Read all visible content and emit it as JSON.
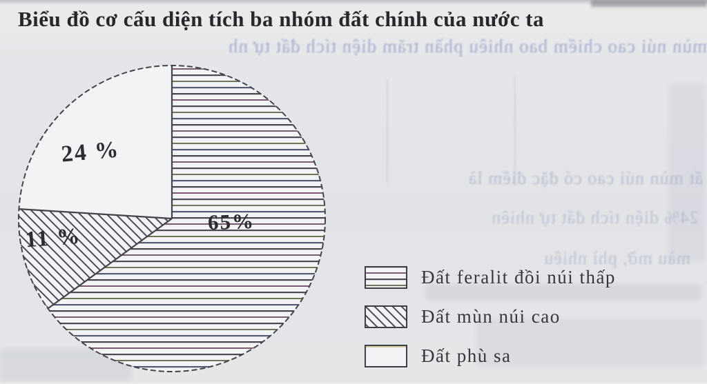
{
  "title": "Biểu đồ cơ cấu diện tích ba nhóm đất chính của nước ta",
  "chart_data": {
    "type": "pie",
    "title": "Biểu đồ cơ cấu diện tích ba nhóm đất chính của nước ta",
    "unit": "%",
    "direction": "clockwise",
    "start_angle_deg": 0,
    "legend_position": "bottom-right",
    "slices": [
      {
        "label": "Đất feralit đồi núi thấp",
        "value": 65,
        "display": "65%",
        "pattern": "hatch-horizontal"
      },
      {
        "label": "Đất mùn núi cao",
        "value": 11,
        "display": "11 %",
        "pattern": "hatch-diagonal"
      },
      {
        "label": "Đất phù sa",
        "value": 24,
        "display": "24 %",
        "pattern": "plain"
      }
    ]
  },
  "ghost_text": {
    "lines": [
      "mùn núi cao chiếm bao nhiêu phần trăm diện tích đất tự nh",
      "ất mùn núi cao có đặc điểm là",
      "24% diện tích đất tự nhiên",
      "màu mỡ, phì nhiêu"
    ]
  },
  "colors": {
    "ink": "#3c3c44",
    "title_ink": "#26262b",
    "paper": "#e4e5e8",
    "pie_fill": "#f2f3f5",
    "hatch_accent_pink": "#7d5a74",
    "hatch_accent_green": "#6a7752",
    "ghost_ink": "#8d9abd"
  }
}
